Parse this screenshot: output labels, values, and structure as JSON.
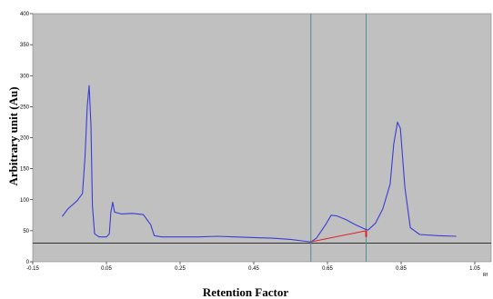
{
  "chart_data": {
    "type": "line",
    "title": "",
    "xlabel": "Retention Factor",
    "ylabel": "Arbitrary unit (Au)",
    "xlim": [
      -0.15,
      1.05
    ],
    "ylim": [
      0,
      400
    ],
    "x_tick_labels": [
      "-0.15",
      "0.05",
      "0.25",
      "0.45",
      "0.65",
      "0.85",
      "1.05"
    ],
    "y_tick_labels": [
      "0",
      "50",
      "100",
      "150",
      "200",
      "250",
      "300",
      "350",
      "400"
    ],
    "corner_label": "Rf",
    "grid": false,
    "background_color": "#c0c0c0",
    "series": [
      {
        "color": "#3b3bd6",
        "points": [
          [
            -0.07,
            73
          ],
          [
            -0.055,
            85
          ],
          [
            -0.03,
            98
          ],
          [
            -0.015,
            110
          ],
          [
            -0.008,
            170
          ],
          [
            -0.002,
            250
          ],
          [
            0.003,
            284
          ],
          [
            0.008,
            220
          ],
          [
            0.012,
            90
          ],
          [
            0.018,
            45
          ],
          [
            0.03,
            40
          ],
          [
            0.05,
            40
          ],
          [
            0.058,
            45
          ],
          [
            0.062,
            80
          ],
          [
            0.067,
            96
          ],
          [
            0.072,
            80
          ],
          [
            0.09,
            77
          ],
          [
            0.12,
            78
          ],
          [
            0.15,
            76
          ],
          [
            0.17,
            60
          ],
          [
            0.18,
            42
          ],
          [
            0.2,
            40
          ],
          [
            0.25,
            40
          ],
          [
            0.3,
            40
          ],
          [
            0.35,
            41
          ],
          [
            0.4,
            40
          ],
          [
            0.45,
            39
          ],
          [
            0.5,
            38
          ],
          [
            0.55,
            36
          ],
          [
            0.59,
            33
          ],
          [
            0.605,
            32
          ],
          [
            0.62,
            38
          ],
          [
            0.645,
            60
          ],
          [
            0.66,
            75
          ],
          [
            0.675,
            74
          ],
          [
            0.7,
            68
          ],
          [
            0.725,
            60
          ],
          [
            0.75,
            53
          ],
          [
            0.76,
            51
          ],
          [
            0.78,
            62
          ],
          [
            0.8,
            85
          ],
          [
            0.82,
            125
          ],
          [
            0.83,
            190
          ],
          [
            0.84,
            225
          ],
          [
            0.848,
            215
          ],
          [
            0.86,
            120
          ],
          [
            0.875,
            55
          ],
          [
            0.9,
            44
          ],
          [
            0.95,
            42
          ],
          [
            1.0,
            41
          ]
        ]
      }
    ],
    "baseline": {
      "y": 30,
      "color": "#333333"
    },
    "markers": {
      "x": [
        0.605,
        0.755
      ],
      "color": "#4f8f96"
    },
    "red_segment": {
      "points": [
        [
          0.605,
          32
        ],
        [
          0.755,
          50
        ]
      ],
      "color": "#e02020"
    }
  }
}
